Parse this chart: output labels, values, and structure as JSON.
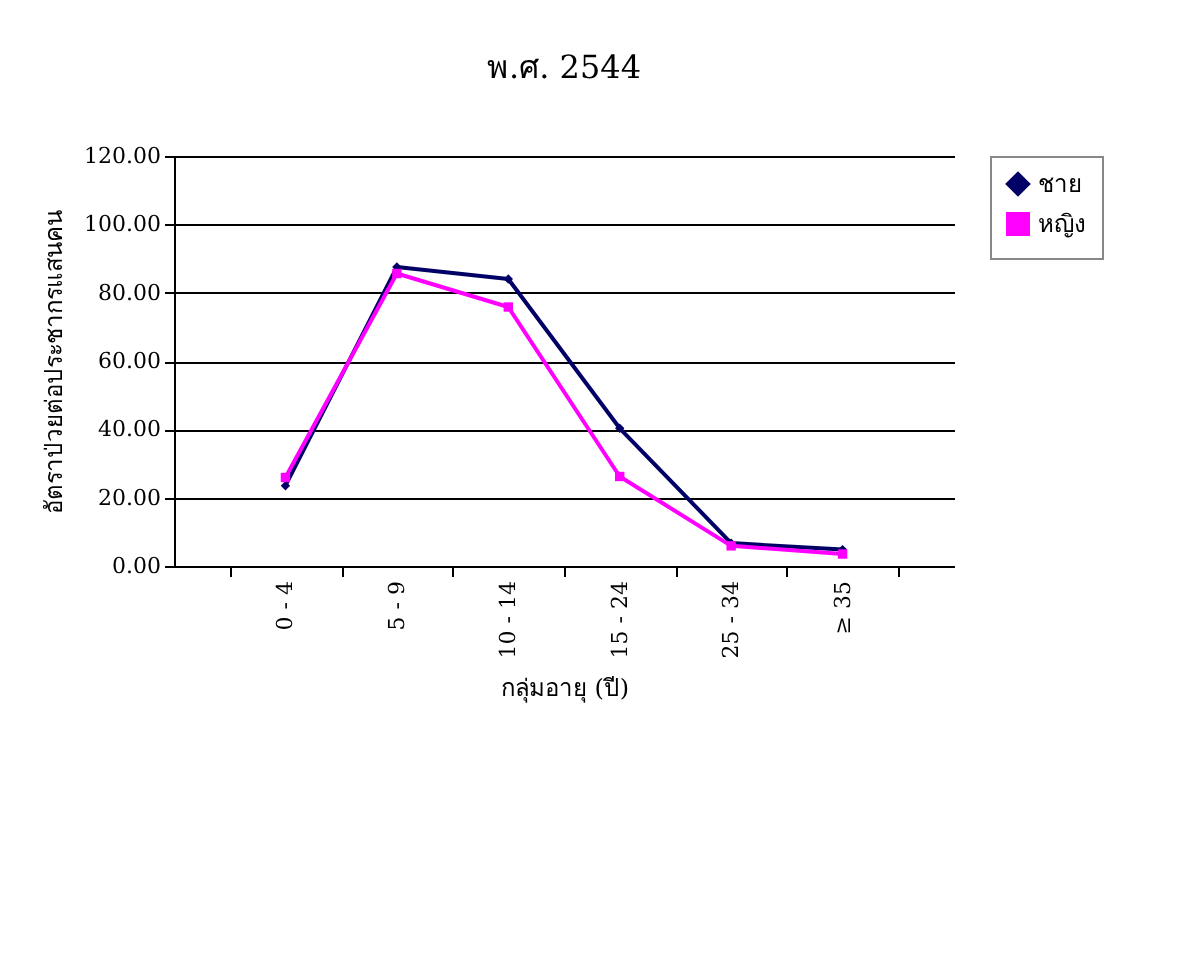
{
  "chart_data": {
    "type": "line",
    "title": "พ.ศ. 2544",
    "xlabel": "กลุ่มอายุ (ปี)",
    "ylabel": "อัตราป่วยต่อประชากรแสนคน",
    "categories": [
      "0 - 4",
      "5 - 9",
      "10 - 14",
      "15 - 24",
      "25 - 34",
      "≥ 35"
    ],
    "series": [
      {
        "name": "ชาย",
        "color": "#000066",
        "marker": "diamond",
        "values": [
          23.5,
          87.5,
          84,
          40.3,
          6.7,
          4.8
        ]
      },
      {
        "name": "หญิง",
        "color": "#ff00ff",
        "marker": "square",
        "values": [
          25.9,
          85.6,
          75.8,
          26.2,
          5.9,
          3.5
        ]
      }
    ],
    "ylim": [
      0,
      120
    ],
    "yticks": [
      {
        "value": 0,
        "label": "0.00"
      },
      {
        "value": 20,
        "label": "20.00"
      },
      {
        "value": 40,
        "label": "40.00"
      },
      {
        "value": 60,
        "label": "60.00"
      },
      {
        "value": 80,
        "label": "80.00"
      },
      {
        "value": 100,
        "label": "100.00"
      },
      {
        "value": 120,
        "label": "120.00"
      }
    ],
    "grid": "y",
    "legend": "right",
    "line_style": "solid"
  }
}
